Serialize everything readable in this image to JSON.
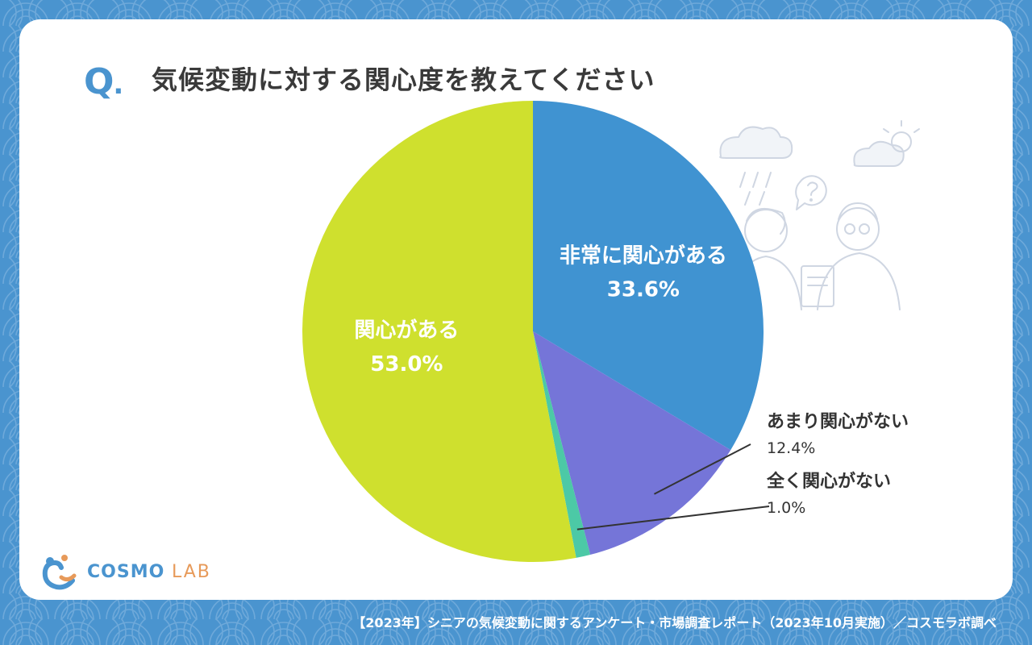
{
  "question": {
    "mark": "Q",
    "dot": ".",
    "text": "気候変動に対する関心度を教えてください"
  },
  "logo": {
    "name": "COSMO",
    "suffix": "LAB"
  },
  "footer": "【2023年】シニアの気候変動に関するアンケート・市場調査レポート（2023年10月実施）／コスモラボ調べ",
  "colors": {
    "background": "#4a94cf",
    "card": "#ffffff",
    "title": "#3a3a3a"
  },
  "chart_data": {
    "type": "pie",
    "title": "気候変動に対する関心度を教えてください",
    "start": "12 o'clock, clockwise",
    "slices": [
      {
        "label": "非常に関心がある",
        "value": 33.6,
        "display": "33.6%",
        "color": "#4093d1",
        "label_style": "inside"
      },
      {
        "label": "あまり関心がない",
        "value": 12.4,
        "display": "12.4%",
        "color": "#7575d8",
        "label_style": "outside"
      },
      {
        "label": "全く関心がない",
        "value": 1.0,
        "display": "1.0%",
        "color": "#4cc9a6",
        "label_style": "outside"
      },
      {
        "label": "関心がある",
        "value": 53.0,
        "display": "53.0%",
        "color": "#cfe02e",
        "label_style": "inside"
      }
    ]
  }
}
